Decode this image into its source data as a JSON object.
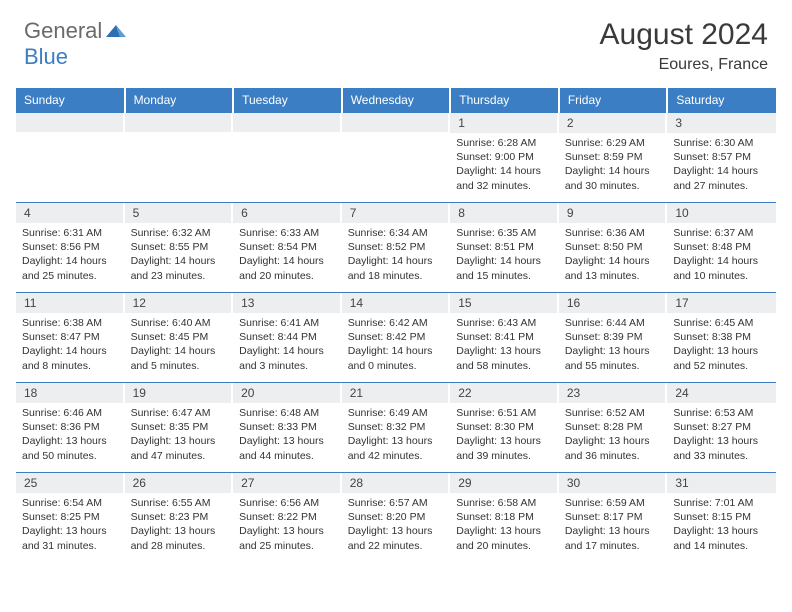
{
  "brand": {
    "word1": "General",
    "word2": "Blue"
  },
  "title": {
    "month": "August 2024",
    "location": "Eoures, France"
  },
  "day_names": [
    "Sunday",
    "Monday",
    "Tuesday",
    "Wednesday",
    "Thursday",
    "Friday",
    "Saturday"
  ],
  "colors": {
    "header_bg": "#3b7ec4",
    "header_text": "#ffffff",
    "daynum_bg": "#eceef0",
    "border": "#3b7ec4",
    "body_text": "#333333",
    "logo_gray": "#6a6a6a",
    "logo_blue": "#3b7ec4",
    "background": "#ffffff"
  },
  "weeks": [
    [
      {
        "n": "",
        "text": ""
      },
      {
        "n": "",
        "text": ""
      },
      {
        "n": "",
        "text": ""
      },
      {
        "n": "",
        "text": ""
      },
      {
        "n": "1",
        "text": "Sunrise: 6:28 AM\nSunset: 9:00 PM\nDaylight: 14 hours and 32 minutes."
      },
      {
        "n": "2",
        "text": "Sunrise: 6:29 AM\nSunset: 8:59 PM\nDaylight: 14 hours and 30 minutes."
      },
      {
        "n": "3",
        "text": "Sunrise: 6:30 AM\nSunset: 8:57 PM\nDaylight: 14 hours and 27 minutes."
      }
    ],
    [
      {
        "n": "4",
        "text": "Sunrise: 6:31 AM\nSunset: 8:56 PM\nDaylight: 14 hours and 25 minutes."
      },
      {
        "n": "5",
        "text": "Sunrise: 6:32 AM\nSunset: 8:55 PM\nDaylight: 14 hours and 23 minutes."
      },
      {
        "n": "6",
        "text": "Sunrise: 6:33 AM\nSunset: 8:54 PM\nDaylight: 14 hours and 20 minutes."
      },
      {
        "n": "7",
        "text": "Sunrise: 6:34 AM\nSunset: 8:52 PM\nDaylight: 14 hours and 18 minutes."
      },
      {
        "n": "8",
        "text": "Sunrise: 6:35 AM\nSunset: 8:51 PM\nDaylight: 14 hours and 15 minutes."
      },
      {
        "n": "9",
        "text": "Sunrise: 6:36 AM\nSunset: 8:50 PM\nDaylight: 14 hours and 13 minutes."
      },
      {
        "n": "10",
        "text": "Sunrise: 6:37 AM\nSunset: 8:48 PM\nDaylight: 14 hours and 10 minutes."
      }
    ],
    [
      {
        "n": "11",
        "text": "Sunrise: 6:38 AM\nSunset: 8:47 PM\nDaylight: 14 hours and 8 minutes."
      },
      {
        "n": "12",
        "text": "Sunrise: 6:40 AM\nSunset: 8:45 PM\nDaylight: 14 hours and 5 minutes."
      },
      {
        "n": "13",
        "text": "Sunrise: 6:41 AM\nSunset: 8:44 PM\nDaylight: 14 hours and 3 minutes."
      },
      {
        "n": "14",
        "text": "Sunrise: 6:42 AM\nSunset: 8:42 PM\nDaylight: 14 hours and 0 minutes."
      },
      {
        "n": "15",
        "text": "Sunrise: 6:43 AM\nSunset: 8:41 PM\nDaylight: 13 hours and 58 minutes."
      },
      {
        "n": "16",
        "text": "Sunrise: 6:44 AM\nSunset: 8:39 PM\nDaylight: 13 hours and 55 minutes."
      },
      {
        "n": "17",
        "text": "Sunrise: 6:45 AM\nSunset: 8:38 PM\nDaylight: 13 hours and 52 minutes."
      }
    ],
    [
      {
        "n": "18",
        "text": "Sunrise: 6:46 AM\nSunset: 8:36 PM\nDaylight: 13 hours and 50 minutes."
      },
      {
        "n": "19",
        "text": "Sunrise: 6:47 AM\nSunset: 8:35 PM\nDaylight: 13 hours and 47 minutes."
      },
      {
        "n": "20",
        "text": "Sunrise: 6:48 AM\nSunset: 8:33 PM\nDaylight: 13 hours and 44 minutes."
      },
      {
        "n": "21",
        "text": "Sunrise: 6:49 AM\nSunset: 8:32 PM\nDaylight: 13 hours and 42 minutes."
      },
      {
        "n": "22",
        "text": "Sunrise: 6:51 AM\nSunset: 8:30 PM\nDaylight: 13 hours and 39 minutes."
      },
      {
        "n": "23",
        "text": "Sunrise: 6:52 AM\nSunset: 8:28 PM\nDaylight: 13 hours and 36 minutes."
      },
      {
        "n": "24",
        "text": "Sunrise: 6:53 AM\nSunset: 8:27 PM\nDaylight: 13 hours and 33 minutes."
      }
    ],
    [
      {
        "n": "25",
        "text": "Sunrise: 6:54 AM\nSunset: 8:25 PM\nDaylight: 13 hours and 31 minutes."
      },
      {
        "n": "26",
        "text": "Sunrise: 6:55 AM\nSunset: 8:23 PM\nDaylight: 13 hours and 28 minutes."
      },
      {
        "n": "27",
        "text": "Sunrise: 6:56 AM\nSunset: 8:22 PM\nDaylight: 13 hours and 25 minutes."
      },
      {
        "n": "28",
        "text": "Sunrise: 6:57 AM\nSunset: 8:20 PM\nDaylight: 13 hours and 22 minutes."
      },
      {
        "n": "29",
        "text": "Sunrise: 6:58 AM\nSunset: 8:18 PM\nDaylight: 13 hours and 20 minutes."
      },
      {
        "n": "30",
        "text": "Sunrise: 6:59 AM\nSunset: 8:17 PM\nDaylight: 13 hours and 17 minutes."
      },
      {
        "n": "31",
        "text": "Sunrise: 7:01 AM\nSunset: 8:15 PM\nDaylight: 13 hours and 14 minutes."
      }
    ]
  ]
}
